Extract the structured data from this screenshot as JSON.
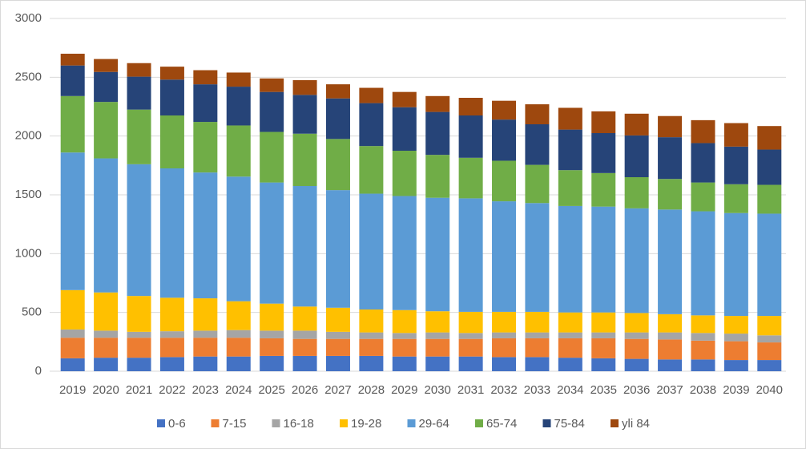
{
  "chart_data": {
    "type": "stacked_bar",
    "categories": [
      "2019",
      "2020",
      "2021",
      "2022",
      "2023",
      "2024",
      "2025",
      "2026",
      "2027",
      "2028",
      "2029",
      "2030",
      "2031",
      "2032",
      "2033",
      "2034",
      "2035",
      "2036",
      "2037",
      "2038",
      "2039",
      "2040"
    ],
    "ylim": [
      0,
      3000
    ],
    "yticks": [
      0,
      500,
      1000,
      1500,
      2000,
      2500,
      3000
    ],
    "grid": true,
    "legend": "bottom",
    "series": [
      {
        "name": "0-6",
        "color": "#4472c4",
        "values": [
          110,
          115,
          115,
          120,
          125,
          125,
          130,
          130,
          130,
          130,
          125,
          125,
          125,
          120,
          120,
          115,
          110,
          105,
          100,
          100,
          95,
          95
        ]
      },
      {
        "name": "7-15",
        "color": "#ed7d31",
        "values": [
          175,
          170,
          170,
          165,
          160,
          160,
          150,
          145,
          145,
          145,
          150,
          150,
          150,
          160,
          160,
          165,
          170,
          170,
          170,
          160,
          160,
          150
        ]
      },
      {
        "name": "16-18",
        "color": "#a5a5a5",
        "values": [
          70,
          60,
          50,
          55,
          60,
          65,
          65,
          70,
          60,
          55,
          50,
          55,
          50,
          50,
          50,
          50,
          50,
          55,
          60,
          65,
          65,
          60
        ]
      },
      {
        "name": "19-28",
        "color": "#ffc000",
        "values": [
          335,
          325,
          305,
          285,
          275,
          245,
          230,
          205,
          205,
          195,
          195,
          180,
          180,
          175,
          175,
          170,
          170,
          165,
          155,
          150,
          150,
          165
        ]
      },
      {
        "name": "29-64",
        "color": "#5b9bd5",
        "values": [
          1170,
          1140,
          1120,
          1100,
          1070,
          1060,
          1030,
          1025,
          1000,
          985,
          970,
          965,
          965,
          940,
          925,
          905,
          900,
          890,
          890,
          885,
          875,
          870
        ]
      },
      {
        "name": "65-74",
        "color": "#70ad47",
        "values": [
          480,
          480,
          465,
          450,
          430,
          435,
          430,
          445,
          435,
          405,
          385,
          365,
          345,
          345,
          325,
          305,
          285,
          265,
          260,
          245,
          245,
          245
        ]
      },
      {
        "name": "75-84",
        "color": "#264478",
        "values": [
          260,
          255,
          280,
          305,
          320,
          330,
          340,
          330,
          345,
          365,
          370,
          365,
          360,
          350,
          345,
          345,
          340,
          355,
          355,
          335,
          320,
          300
        ]
      },
      {
        "name": "yli 84",
        "color": "#9e480e",
        "values": [
          100,
          110,
          115,
          110,
          120,
          120,
          115,
          125,
          120,
          130,
          130,
          135,
          150,
          160,
          170,
          185,
          185,
          185,
          180,
          195,
          200,
          200
        ]
      }
    ]
  }
}
